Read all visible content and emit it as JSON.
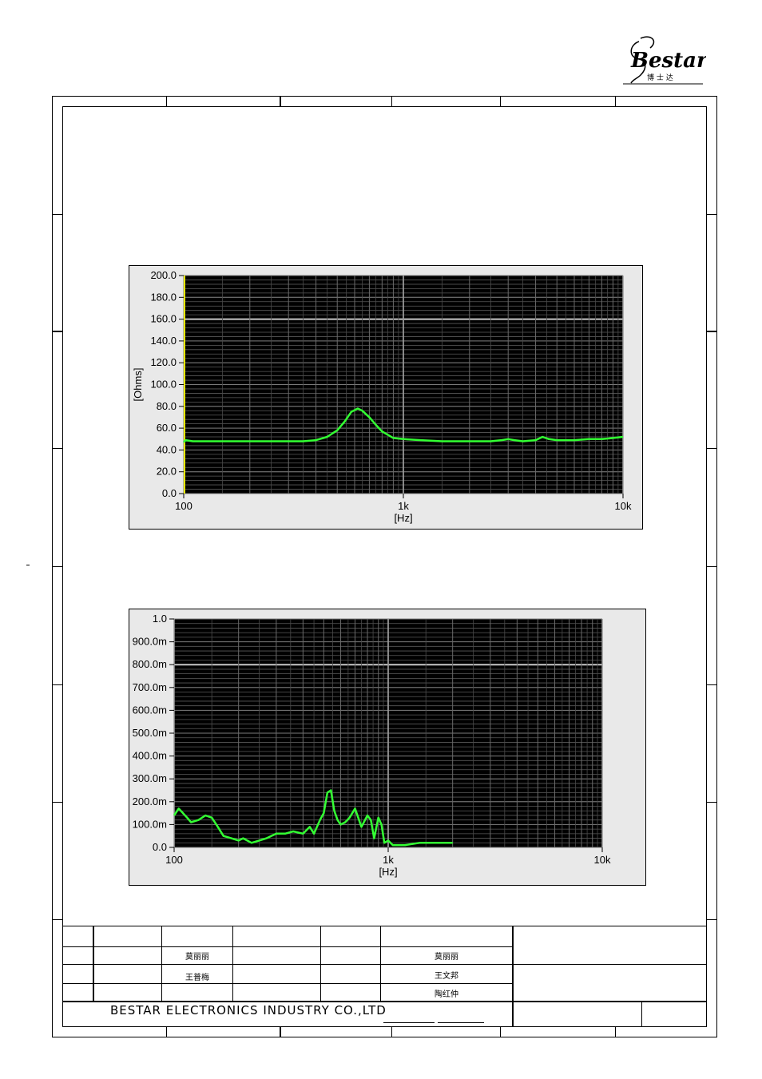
{
  "logo": {
    "brand": "Bestar",
    "chinese": "博 士 达"
  },
  "chart1": {
    "type": "line",
    "ylabel": "[Ohms]",
    "xlabel": "[Hz]",
    "y_ticks": [
      "200.0",
      "180.0",
      "160.0",
      "140.0",
      "120.0",
      "100.0",
      "80.0",
      "60.0",
      "40.0",
      "20.0",
      "0.0"
    ],
    "x_ticks": [
      "100",
      "1k",
      "10k"
    ],
    "ylim": [
      0,
      200
    ],
    "xlim": [
      100,
      10000
    ],
    "x_scale": "log",
    "series_color": "#33ff33",
    "x": [
      100,
      102,
      110,
      150,
      200,
      300,
      350,
      400,
      450,
      500,
      540,
      580,
      620,
      650,
      700,
      750,
      800,
      900,
      1000,
      1200,
      1500,
      2000,
      2500,
      2800,
      3000,
      3200,
      3500,
      4000,
      4300,
      4600,
      5000,
      6000,
      7000,
      8000,
      9000,
      10000
    ],
    "y": [
      47,
      49,
      48,
      48,
      48,
      48,
      48,
      49,
      52,
      58,
      66,
      75,
      78,
      76,
      70,
      63,
      57,
      51,
      50,
      49,
      48,
      48,
      48,
      49,
      50,
      49,
      48,
      49,
      52,
      50,
      49,
      49,
      50,
      50,
      51,
      52
    ]
  },
  "chart2": {
    "type": "line",
    "xlabel": "[Hz]",
    "y_ticks": [
      "1.0",
      "900.0m",
      "800.0m",
      "700.0m",
      "600.0m",
      "500.0m",
      "400.0m",
      "300.0m",
      "200.0m",
      "100.0m",
      "0.0"
    ],
    "x_ticks": [
      "100",
      "1k",
      "10k"
    ],
    "ylim": [
      0,
      1.0
    ],
    "xlim": [
      100,
      10000
    ],
    "x_scale": "log",
    "series_color": "#33ff33",
    "x": [
      100,
      105,
      110,
      115,
      120,
      130,
      140,
      150,
      160,
      170,
      185,
      200,
      210,
      230,
      250,
      270,
      300,
      330,
      360,
      400,
      430,
      450,
      480,
      500,
      520,
      540,
      560,
      580,
      600,
      630,
      660,
      700,
      750,
      800,
      830,
      860,
      900,
      930,
      960,
      1000,
      1050,
      1100,
      1200,
      1400,
      1700,
      2000
    ],
    "y": [
      0.14,
      0.17,
      0.15,
      0.13,
      0.11,
      0.12,
      0.14,
      0.13,
      0.09,
      0.05,
      0.04,
      0.03,
      0.04,
      0.02,
      0.03,
      0.04,
      0.06,
      0.06,
      0.07,
      0.06,
      0.09,
      0.06,
      0.12,
      0.15,
      0.24,
      0.25,
      0.16,
      0.12,
      0.1,
      0.11,
      0.13,
      0.17,
      0.09,
      0.14,
      0.12,
      0.04,
      0.13,
      0.1,
      0.02,
      0.03,
      0.01,
      0.01,
      0.01,
      0.02,
      0.02,
      0.02
    ]
  },
  "title_block": {
    "names": {
      "r1c2": "莫丽丽",
      "r1c5": "莫丽丽",
      "r2c2": "王普梅",
      "r2c5": "王文邦",
      "r3c5": "陶红仲"
    },
    "company": "BESTAR ELECTRONICS INDUSTRY CO.,LTD"
  }
}
